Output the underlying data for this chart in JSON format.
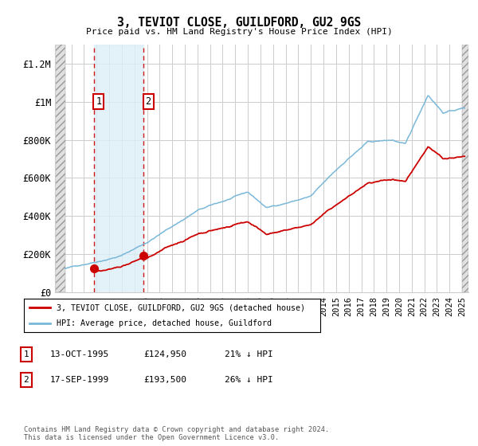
{
  "title": "3, TEVIOT CLOSE, GUILDFORD, GU2 9GS",
  "subtitle": "Price paid vs. HM Land Registry's House Price Index (HPI)",
  "ylabel_ticks": [
    "£0",
    "£200K",
    "£400K",
    "£600K",
    "£800K",
    "£1M",
    "£1.2M"
  ],
  "ytick_values": [
    0,
    200000,
    400000,
    600000,
    800000,
    1000000,
    1200000
  ],
  "ylim": [
    0,
    1300000
  ],
  "sale1": {
    "date_num": 1995.79,
    "price": 124950,
    "label": "1"
  },
  "sale2": {
    "date_num": 1999.72,
    "price": 193500,
    "label": "2"
  },
  "hpi_color": "#7ab8d9",
  "sale_color": "#cc0000",
  "legend_entries": [
    "3, TEVIOT CLOSE, GUILDFORD, GU2 9GS (detached house)",
    "HPI: Average price, detached house, Guildford"
  ],
  "table_rows": [
    {
      "num": "1",
      "date": "13-OCT-1995",
      "price": "£124,950",
      "note": "21% ↓ HPI"
    },
    {
      "num": "2",
      "date": "17-SEP-1999",
      "price": "£193,500",
      "note": "26% ↓ HPI"
    }
  ],
  "footer": "Contains HM Land Registry data © Crown copyright and database right 2024.\nThis data is licensed under the Open Government Licence v3.0.",
  "xlim_start": 1992.7,
  "xlim_end": 2025.5
}
